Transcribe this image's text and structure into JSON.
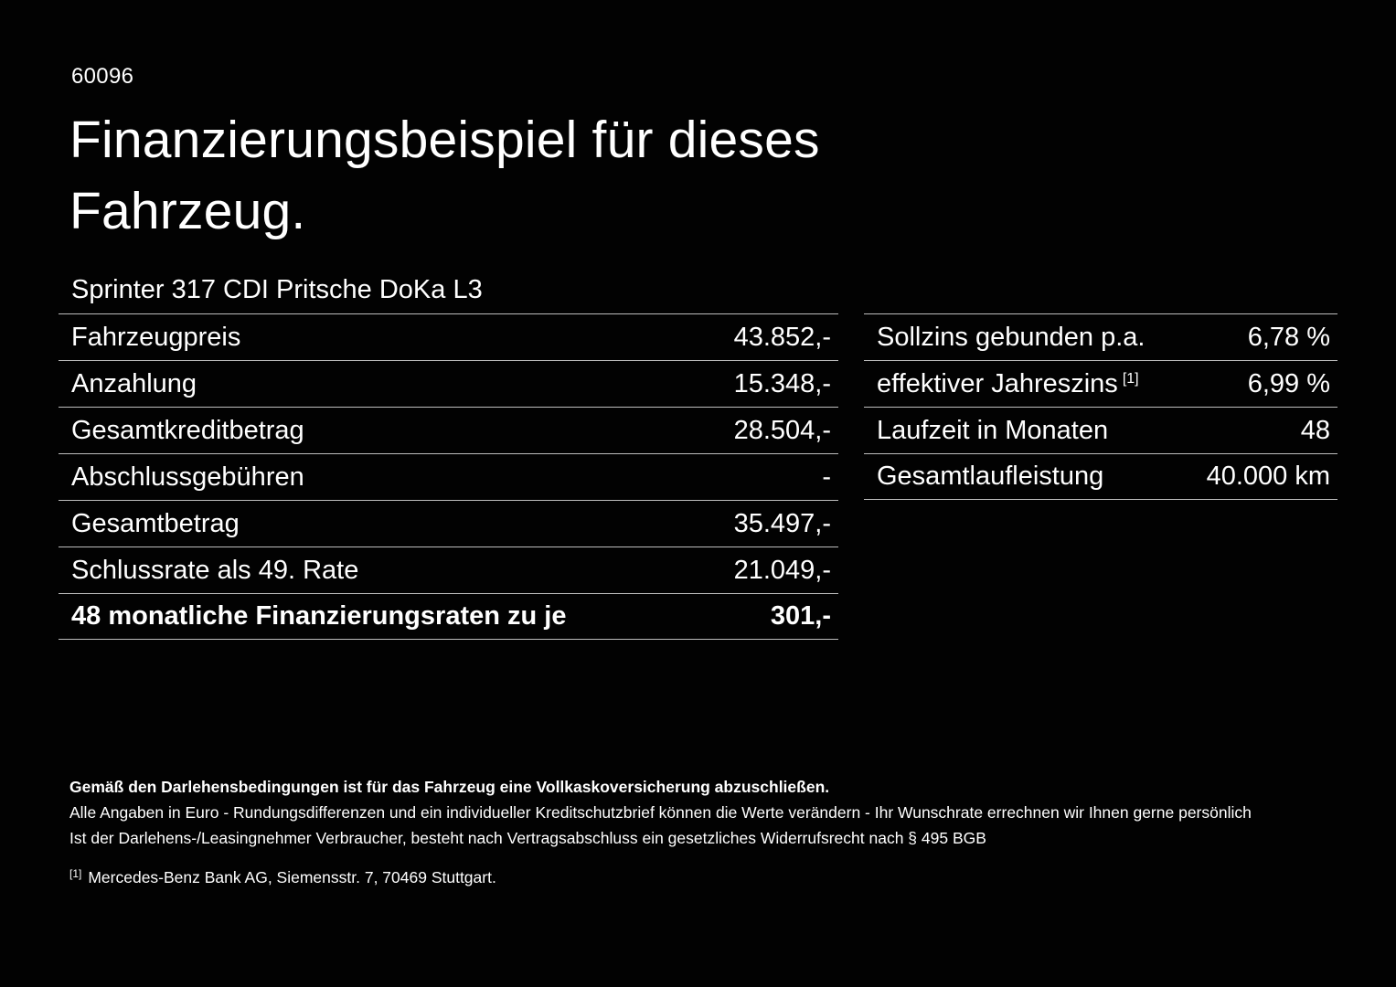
{
  "page": {
    "doc_number": "60096",
    "title_line1": "Finanzierungsbeispiel für dieses",
    "title_line2": "Fahrzeug.",
    "vehicle_model": "Sprinter 317 CDI Pritsche DoKa L3"
  },
  "left_table": {
    "rows": [
      {
        "label": "Fahrzeugpreis",
        "value": "43.852,-"
      },
      {
        "label": "Anzahlung",
        "value": "15.348,-"
      },
      {
        "label": "Gesamtkreditbetrag",
        "value": "28.504,-"
      },
      {
        "label": "Abschlussgebühren",
        "value": "-"
      },
      {
        "label": "Gesamtbetrag",
        "value": "35.497,-"
      },
      {
        "label": "Schlussrate als 49. Rate",
        "value": "21.049,-"
      },
      {
        "label": "48 monatliche Finanzierungsraten zu je",
        "value": "301,-"
      }
    ]
  },
  "right_table": {
    "rows": [
      {
        "label": "Sollzins gebunden p.a.",
        "value": "6,78 %"
      },
      {
        "label": "effektiver Jahreszins",
        "superscript": "[1]",
        "value": "6,99 %"
      },
      {
        "label": "Laufzeit in Monaten",
        "value": "48"
      },
      {
        "label": "Gesamtlaufleistung",
        "value": "40.000 km"
      }
    ]
  },
  "footer": {
    "line1": "Gemäß den Darlehensbedingungen ist für das Fahrzeug eine Vollkaskoversicherung abzuschließen.",
    "line2": "Alle Angaben in Euro - Rundungsdifferenzen und ein individueller Kreditschutzbrief können die Werte verändern - Ihr Wunschrate errechnen wir Ihnen gerne persönlich",
    "line3": "Ist der Darlehens-/Leasingnehmer Verbraucher, besteht nach Vertragsabschluss ein gesetzliches Widerrufsrecht nach § 495 BGB",
    "footnote_marker": "[1]",
    "footnote_text": "Mercedes-Benz Bank AG, Siemensstr. 7, 70469 Stuttgart."
  },
  "colors": {
    "background": "#020202",
    "text": "#ffffff",
    "divider": "#bdbdbd"
  }
}
